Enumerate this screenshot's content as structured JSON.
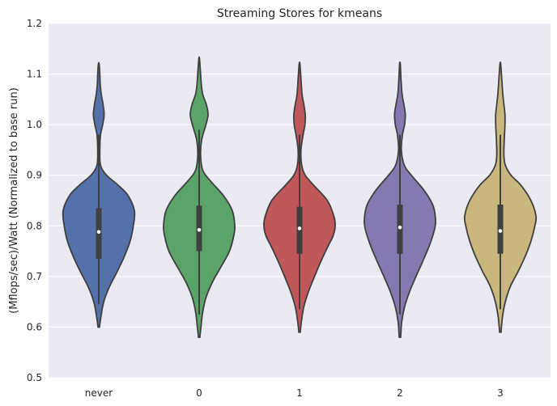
{
  "chart_data": {
    "type": "violin",
    "title": "Streaming Stores for kmeans",
    "xlabel": "",
    "ylabel": "(Mflops/sec)/Watt (Normalized to base run)",
    "ylim": [
      0.5,
      1.2
    ],
    "yticks": [
      0.5,
      0.6,
      0.7,
      0.8,
      0.9,
      1.0,
      1.1,
      1.2
    ],
    "ytick_labels": [
      "0.5",
      "0.6",
      "0.7",
      "0.8",
      "0.9",
      "1.0",
      "1.1",
      "1.2"
    ],
    "grid": true,
    "categories": [
      "never",
      "0",
      "1",
      "2",
      "3"
    ],
    "colors": [
      "#5471ab",
      "#5aa469",
      "#c0575b",
      "#8678b1",
      "#c9b77e"
    ],
    "series": [
      {
        "category": "never",
        "min": 0.6,
        "max": 1.12,
        "q1": 0.735,
        "median": 0.788,
        "q3": 0.835,
        "density": [
          [
            0.6,
            0.02
          ],
          [
            0.62,
            0.06
          ],
          [
            0.65,
            0.14
          ],
          [
            0.68,
            0.3
          ],
          [
            0.71,
            0.52
          ],
          [
            0.74,
            0.72
          ],
          [
            0.77,
            0.88
          ],
          [
            0.8,
            0.97
          ],
          [
            0.83,
            1.0
          ],
          [
            0.86,
            0.82
          ],
          [
            0.88,
            0.55
          ],
          [
            0.9,
            0.22
          ],
          [
            0.92,
            0.05
          ],
          [
            0.95,
            0.03
          ],
          [
            0.98,
            0.05
          ],
          [
            1.0,
            0.11
          ],
          [
            1.02,
            0.15
          ],
          [
            1.04,
            0.12
          ],
          [
            1.06,
            0.07
          ],
          [
            1.08,
            0.04
          ],
          [
            1.1,
            0.03
          ],
          [
            1.12,
            0.01
          ]
        ]
      },
      {
        "category": "0",
        "min": 0.58,
        "max": 1.13,
        "q1": 0.75,
        "median": 0.792,
        "q3": 0.84,
        "density": [
          [
            0.58,
            0.02
          ],
          [
            0.6,
            0.05
          ],
          [
            0.63,
            0.1
          ],
          [
            0.66,
            0.2
          ],
          [
            0.69,
            0.38
          ],
          [
            0.72,
            0.62
          ],
          [
            0.75,
            0.85
          ],
          [
            0.78,
            0.97
          ],
          [
            0.8,
            1.0
          ],
          [
            0.83,
            0.93
          ],
          [
            0.86,
            0.68
          ],
          [
            0.89,
            0.3
          ],
          [
            0.91,
            0.1
          ],
          [
            0.94,
            0.04
          ],
          [
            0.97,
            0.07
          ],
          [
            1.0,
            0.19
          ],
          [
            1.02,
            0.25
          ],
          [
            1.04,
            0.2
          ],
          [
            1.06,
            0.1
          ],
          [
            1.08,
            0.06
          ],
          [
            1.1,
            0.04
          ],
          [
            1.13,
            0.01
          ]
        ]
      },
      {
        "category": "1",
        "min": 0.59,
        "max": 1.12,
        "q1": 0.745,
        "median": 0.795,
        "q3": 0.838,
        "density": [
          [
            0.59,
            0.02
          ],
          [
            0.61,
            0.05
          ],
          [
            0.64,
            0.12
          ],
          [
            0.67,
            0.25
          ],
          [
            0.7,
            0.42
          ],
          [
            0.73,
            0.6
          ],
          [
            0.76,
            0.8
          ],
          [
            0.78,
            0.94
          ],
          [
            0.8,
            1.0
          ],
          [
            0.82,
            0.96
          ],
          [
            0.85,
            0.78
          ],
          [
            0.88,
            0.4
          ],
          [
            0.9,
            0.16
          ],
          [
            0.92,
            0.06
          ],
          [
            0.95,
            0.04
          ],
          [
            0.98,
            0.1
          ],
          [
            1.0,
            0.15
          ],
          [
            1.02,
            0.16
          ],
          [
            1.04,
            0.12
          ],
          [
            1.06,
            0.07
          ],
          [
            1.09,
            0.04
          ],
          [
            1.12,
            0.01
          ]
        ]
      },
      {
        "category": "2",
        "min": 0.58,
        "max": 1.12,
        "q1": 0.745,
        "median": 0.797,
        "q3": 0.842,
        "density": [
          [
            0.58,
            0.02
          ],
          [
            0.61,
            0.05
          ],
          [
            0.64,
            0.13
          ],
          [
            0.67,
            0.27
          ],
          [
            0.7,
            0.45
          ],
          [
            0.73,
            0.64
          ],
          [
            0.76,
            0.82
          ],
          [
            0.79,
            0.96
          ],
          [
            0.81,
            1.0
          ],
          [
            0.84,
            0.93
          ],
          [
            0.87,
            0.68
          ],
          [
            0.9,
            0.32
          ],
          [
            0.92,
            0.12
          ],
          [
            0.95,
            0.04
          ],
          [
            0.98,
            0.07
          ],
          [
            1.0,
            0.13
          ],
          [
            1.02,
            0.15
          ],
          [
            1.04,
            0.11
          ],
          [
            1.06,
            0.06
          ],
          [
            1.09,
            0.03
          ],
          [
            1.12,
            0.01
          ]
        ]
      },
      {
        "category": "3",
        "min": 0.59,
        "max": 1.12,
        "q1": 0.745,
        "median": 0.79,
        "q3": 0.842,
        "density": [
          [
            0.59,
            0.02
          ],
          [
            0.62,
            0.06
          ],
          [
            0.65,
            0.14
          ],
          [
            0.68,
            0.28
          ],
          [
            0.71,
            0.5
          ],
          [
            0.74,
            0.7
          ],
          [
            0.77,
            0.86
          ],
          [
            0.8,
            0.97
          ],
          [
            0.82,
            1.0
          ],
          [
            0.85,
            0.86
          ],
          [
            0.88,
            0.58
          ],
          [
            0.9,
            0.3
          ],
          [
            0.92,
            0.14
          ],
          [
            0.94,
            0.1
          ],
          [
            0.97,
            0.11
          ],
          [
            1.0,
            0.13
          ],
          [
            1.02,
            0.13
          ],
          [
            1.04,
            0.1
          ],
          [
            1.06,
            0.07
          ],
          [
            1.09,
            0.04
          ],
          [
            1.12,
            0.01
          ]
        ]
      }
    ]
  }
}
